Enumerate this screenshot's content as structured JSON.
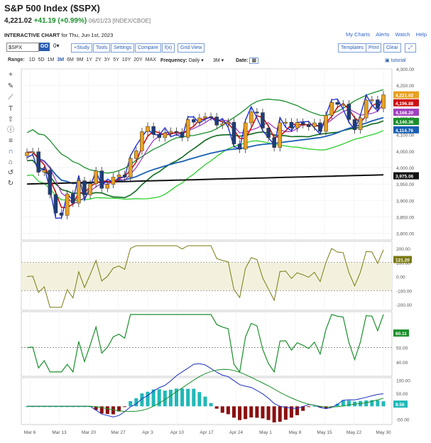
{
  "header": {
    "title": "S&P 500 Index ($SPX)",
    "price": "4,221.02",
    "change": "+41.19 (+0.99%)",
    "date": "06/01/23 [INDEX/CBOE]"
  },
  "subheader": {
    "label": "INTERACTIVE CHART",
    "suffix": "for Thu, Jun 1st, 2023"
  },
  "links": {
    "my_charts": "My Charts",
    "alerts": "Alerts",
    "watch": "Watch",
    "help": "Help"
  },
  "toolbar": {
    "symbol": "$SPX",
    "go": "GO",
    "study": "+Study",
    "tools": "Tools",
    "settings": "Settings",
    "compare": "Compare",
    "fx": "f(x)",
    "grid": "Grid View",
    "templates": "Templates",
    "print": "Print",
    "clear": "Clear"
  },
  "controls": {
    "range_label": "Range:",
    "ranges": [
      "1D",
      "5D",
      "1M",
      "3M",
      "6M",
      "9M",
      "1Y",
      "2Y",
      "3Y",
      "5Y",
      "10Y",
      "20Y",
      "MAX"
    ],
    "active_range": "3M",
    "frequency_label": "Frequency:",
    "frequency": "Daily",
    "period": "3M",
    "date_label": "Date:",
    "tutorial": "tutorial"
  },
  "icons": [
    "crosshair-icon",
    "pencil-icon",
    "measure-icon",
    "text-icon",
    "arrow-icon",
    "info-icon",
    "lines-icon",
    "magnet-icon",
    "lock-icon",
    "undo-icon",
    "redo-icon"
  ],
  "price_axis": {
    "ticks": [
      "4,300.00",
      "4,250.00",
      "4,200.00",
      "4,150.00",
      "4,100.00",
      "4,050.00",
      "4,000.00",
      "3,950.00",
      "3,900.00",
      "3,850.00",
      "3,800.00"
    ]
  },
  "price_labels": [
    {
      "text": "4,221.02",
      "color": "#e8a020"
    },
    {
      "text": "4,196.88",
      "color": "#cc1111"
    },
    {
      "text": "4,168.20",
      "color": "#a040c0"
    },
    {
      "text": "4,140.36",
      "color": "#1a8f2c"
    },
    {
      "text": "4,114.76",
      "color": "#1a5fb4"
    },
    {
      "text": "3,975.06",
      "color": "#111111"
    }
  ],
  "cci_axis": {
    "ticks": [
      "200.00",
      "100.00",
      "0.00",
      "-100.00",
      "-200.00"
    ],
    "label": "121.20"
  },
  "rsi_axis": {
    "ticks": [
      "50.00",
      "40.00"
    ],
    "label": "60.11"
  },
  "macd_axis": {
    "ticks": [
      "100.00",
      "50.00",
      "-50.00"
    ],
    "label": "8.56"
  },
  "x_axis": [
    "Mar 6",
    "Mar 13",
    "Mar 20",
    "Mar 27",
    "Apr 3",
    "Apr 10",
    "Apr 17",
    "Apr 24",
    "May 1",
    "May 8",
    "May 15",
    "May 22",
    "May 30"
  ],
  "chart_data": {
    "type": "line",
    "title": "S&P 500 Index ($SPX)",
    "x": [
      "Mar 3",
      "Mar 6",
      "Mar 7",
      "Mar 8",
      "Mar 9",
      "Mar 10",
      "Mar 13",
      "Mar 14",
      "Mar 15",
      "Mar 16",
      "Mar 17",
      "Mar 20",
      "Mar 21",
      "Mar 22",
      "Mar 23",
      "Mar 24",
      "Mar 27",
      "Mar 28",
      "Mar 29",
      "Mar 30",
      "Mar 31",
      "Apr 3",
      "Apr 4",
      "Apr 5",
      "Apr 6",
      "Apr 10",
      "Apr 11",
      "Apr 12",
      "Apr 13",
      "Apr 14",
      "Apr 17",
      "Apr 18",
      "Apr 19",
      "Apr 20",
      "Apr 21",
      "Apr 24",
      "Apr 25",
      "Apr 26",
      "Apr 27",
      "Apr 28",
      "May 1",
      "May 2",
      "May 3",
      "May 4",
      "May 5",
      "May 8",
      "May 9",
      "May 10",
      "May 11",
      "May 12",
      "May 15",
      "May 16",
      "May 17",
      "May 18",
      "May 19",
      "May 22",
      "May 23",
      "May 24",
      "May 25",
      "May 26",
      "May 30",
      "May 31",
      "Jun 1"
    ],
    "close": [
      4046,
      4048,
      3986,
      3992,
      3918,
      3862,
      3855,
      3920,
      3892,
      3960,
      3917,
      3951,
      3990,
      3937,
      3949,
      3971,
      3978,
      3971,
      4028,
      4051,
      4109,
      4125,
      4101,
      4091,
      4105,
      4110,
      4108,
      4092,
      4146,
      4138,
      4151,
      4155,
      4154,
      4129,
      4133,
      4138,
      4072,
      4056,
      4136,
      4169,
      4167,
      4120,
      4091,
      4061,
      4136,
      4138,
      4120,
      4137,
      4131,
      4124,
      4136,
      4110,
      4159,
      4198,
      4192,
      4193,
      4146,
      4115,
      4151,
      4205,
      4206,
      4180,
      4221
    ],
    "series": [
      {
        "name": "4,196.88",
        "color": "#cc1111"
      },
      {
        "name": "4,168.20",
        "color": "#a040c0"
      },
      {
        "name": "4,140.36",
        "color": "#1a8f2c"
      },
      {
        "name": "4,114.76",
        "color": "#1a5fb4"
      },
      {
        "name": "3,975.06",
        "color": "#111111"
      }
    ],
    "ylim": [
      3780,
      4300
    ]
  }
}
